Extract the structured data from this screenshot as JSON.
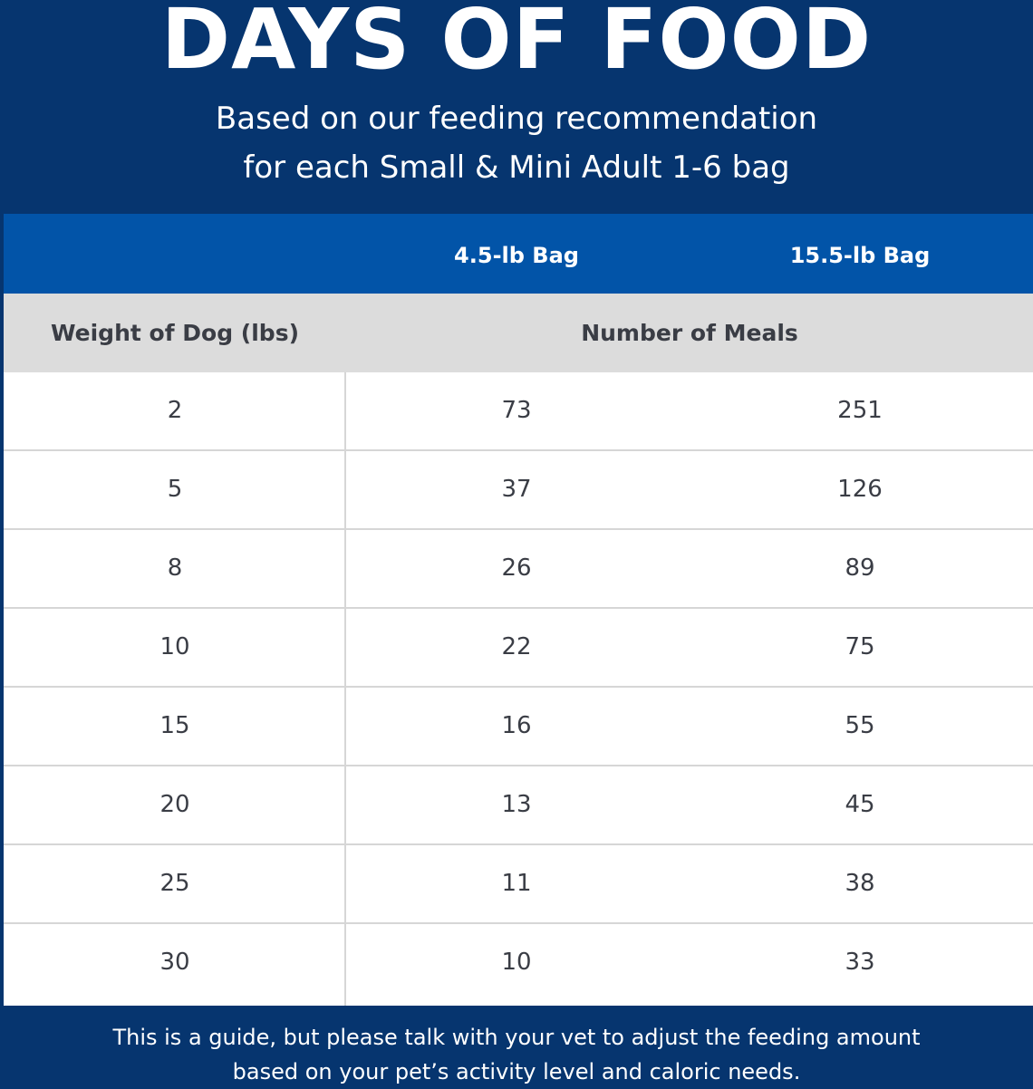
{
  "header": {
    "title": "DAYS OF FOOD",
    "subtitle_line1": "Based on our feeding recommendation",
    "subtitle_line2": "for each Small & Mini Adult 1-6 bag"
  },
  "chart_data": {
    "type": "table",
    "title": "DAYS OF FOOD",
    "subtitle": "Based on our feeding recommendation for each Small & Mini Adult 1-6 bag",
    "bag_headers": [
      "4.5-lb Bag",
      "15.5-lb Bag"
    ],
    "row_header": "Weight of Dog (lbs)",
    "value_header": "Number of Meals",
    "rows": [
      {
        "weight": "2",
        "bag_4_5": "73",
        "bag_15_5": "251"
      },
      {
        "weight": "5",
        "bag_4_5": "37",
        "bag_15_5": "126"
      },
      {
        "weight": "8",
        "bag_4_5": "26",
        "bag_15_5": "89"
      },
      {
        "weight": "10",
        "bag_4_5": "22",
        "bag_15_5": "75"
      },
      {
        "weight": "15",
        "bag_4_5": "16",
        "bag_15_5": "55"
      },
      {
        "weight": "20",
        "bag_4_5": "13",
        "bag_15_5": "45"
      },
      {
        "weight": "25",
        "bag_4_5": "11",
        "bag_15_5": "38"
      },
      {
        "weight": "30",
        "bag_4_5": "10",
        "bag_15_5": "33"
      }
    ]
  },
  "footer": {
    "note_line1": "This is a guide, but please talk with your vet to adjust the feeding amount",
    "note_line2": "based on your pet’s activity level and caloric needs."
  },
  "colors": {
    "navy": "#06356f",
    "blue": "#0254a8",
    "header_gray": "#dcdcdc",
    "text_dark": "#3a3d45"
  }
}
